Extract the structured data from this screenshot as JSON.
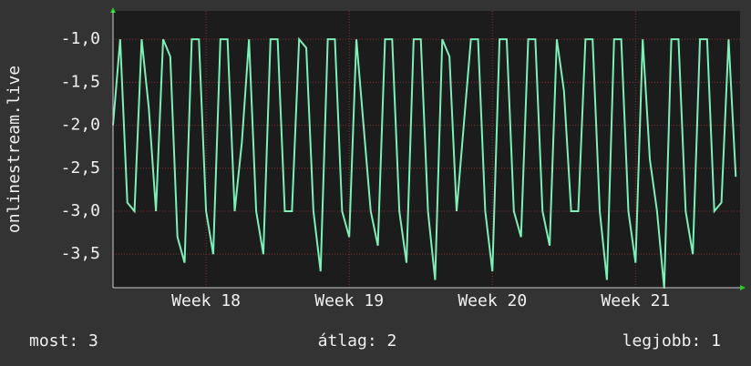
{
  "chart_data": {
    "type": "line",
    "ylabel": "onlinestream.live",
    "x": [
      17.35,
      17.4,
      17.45,
      17.5,
      17.55,
      17.6,
      17.65,
      17.7,
      17.75,
      17.8,
      17.85,
      17.9,
      17.95,
      18.0,
      18.05,
      18.1,
      18.15,
      18.2,
      18.25,
      18.3,
      18.35,
      18.4,
      18.45,
      18.5,
      18.55,
      18.6,
      18.65,
      18.7,
      18.75,
      18.8,
      18.85,
      18.9,
      18.95,
      19.0,
      19.05,
      19.1,
      19.15,
      19.2,
      19.25,
      19.3,
      19.35,
      19.4,
      19.45,
      19.5,
      19.55,
      19.6,
      19.65,
      19.7,
      19.75,
      19.8,
      19.85,
      19.9,
      19.95,
      20.0,
      20.05,
      20.1,
      20.15,
      20.2,
      20.25,
      20.3,
      20.35,
      20.4,
      20.45,
      20.5,
      20.55,
      20.6,
      20.65,
      20.7,
      20.75,
      20.8,
      20.85,
      20.9,
      20.95,
      21.0,
      21.05,
      21.1,
      21.15,
      21.2,
      21.25,
      21.3,
      21.35,
      21.4,
      21.45,
      21.5,
      21.55,
      21.6,
      21.65,
      21.7
    ],
    "series": [
      {
        "name": "onlinestream.live",
        "color": "#7df0b8",
        "values": [
          -2.0,
          -1.0,
          -2.9,
          -3.0,
          -1.0,
          -1.8,
          -3.0,
          -1.0,
          -1.2,
          -3.3,
          -3.6,
          -1.0,
          -1.0,
          -3.0,
          -3.5,
          -1.0,
          -1.0,
          -3.0,
          -2.2,
          -1.0,
          -3.0,
          -3.5,
          -1.0,
          -1.0,
          -3.0,
          -3.0,
          -1.0,
          -1.1,
          -3.0,
          -3.7,
          -1.0,
          -1.0,
          -3.0,
          -3.3,
          -1.0,
          -2.0,
          -3.0,
          -3.4,
          -1.0,
          -1.0,
          -3.0,
          -3.6,
          -1.0,
          -1.0,
          -3.0,
          -3.8,
          -1.0,
          -1.2,
          -3.0,
          -2.0,
          -1.0,
          -1.0,
          -3.0,
          -3.7,
          -1.0,
          -1.0,
          -3.0,
          -3.3,
          -1.0,
          -1.0,
          -3.0,
          -3.4,
          -1.0,
          -1.6,
          -3.0,
          -3.0,
          -1.0,
          -1.0,
          -3.0,
          -3.8,
          -1.0,
          -1.0,
          -3.0,
          -3.6,
          -1.0,
          -2.4,
          -3.0,
          -3.9,
          -1.0,
          -1.0,
          -3.0,
          -3.5,
          -1.0,
          -1.0,
          -3.0,
          -2.9,
          -1.0,
          -2.6
        ]
      }
    ],
    "xlim": [
      17.35,
      21.73
    ],
    "ylim": [
      -3.89,
      -0.67
    ],
    "xticks": [
      {
        "value": 18,
        "label": "Week 18"
      },
      {
        "value": 19,
        "label": "Week 19"
      },
      {
        "value": 20,
        "label": "Week 20"
      },
      {
        "value": 21,
        "label": "Week 21"
      }
    ],
    "yticks": [
      {
        "value": -1,
        "label": "-1,0"
      },
      {
        "value": -1.5,
        "label": "-1,5"
      },
      {
        "value": -2,
        "label": "-2,0"
      },
      {
        "value": -2.5,
        "label": "-2,5"
      },
      {
        "value": -3,
        "label": "-3,0"
      },
      {
        "value": -3.5,
        "label": "-3,5"
      }
    ],
    "grid": true,
    "footer": [
      "most: 3",
      "átlag: 2",
      "legjobb: 1"
    ]
  }
}
